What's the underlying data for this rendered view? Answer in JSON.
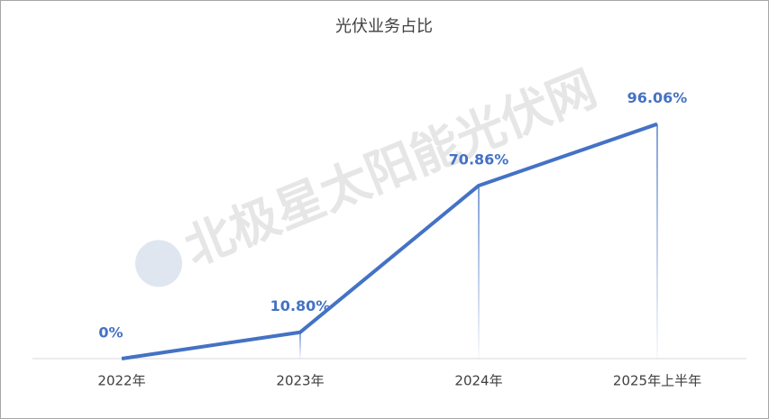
{
  "chart_data": {
    "type": "line",
    "title": "光伏业务占比",
    "watermark": "北极星太阳能光伏网",
    "categories": [
      "2022年",
      "2023年",
      "2024年",
      "2025年上半年"
    ],
    "values": [
      0,
      10.8,
      70.86,
      96.06
    ],
    "value_labels": [
      "0%",
      "10.80%",
      "70.86%",
      "96.06%"
    ],
    "color": "#4472c4",
    "ylim": [
      0,
      100
    ]
  }
}
